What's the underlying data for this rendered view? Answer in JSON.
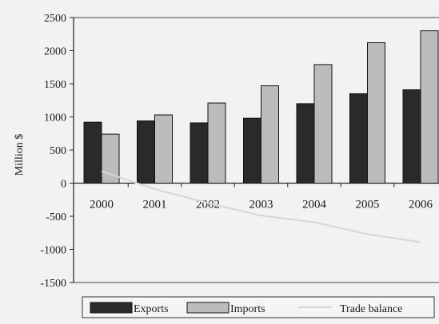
{
  "chart_data": {
    "type": "bar",
    "title": "",
    "xlabel": "",
    "ylabel": "Million $",
    "categories": [
      "2000",
      "2001",
      "2002",
      "2003",
      "2004",
      "2005",
      "2006"
    ],
    "ylim": [
      -1500,
      2500
    ],
    "yticks": [
      2500,
      2000,
      1500,
      1000,
      500,
      0,
      -500,
      -1000,
      -1500
    ],
    "grid": false,
    "legend_position": "bottom",
    "series": [
      {
        "name": "Exports",
        "type": "bar",
        "color": "#2a2a2a",
        "values": [
          920,
          940,
          910,
          980,
          1200,
          1350,
          1410
        ]
      },
      {
        "name": "Imports",
        "type": "bar",
        "color": "#bcbcbc",
        "values": [
          740,
          1030,
          1210,
          1470,
          1790,
          2120,
          2300
        ]
      },
      {
        "name": "Trade balance",
        "type": "line",
        "color": "#d6d6d6",
        "values": [
          180,
          -90,
          -300,
          -490,
          -590,
          -770,
          -890
        ]
      }
    ]
  }
}
